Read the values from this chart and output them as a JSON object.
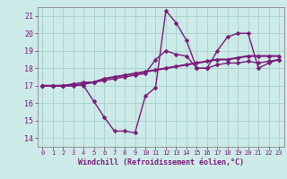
{
  "background_color": "#cceae7",
  "grid_color": "#aad4d0",
  "line_color": "#7B1A7B",
  "xlabel": "Windchill (Refroidissement éolien,°C)",
  "xlim": [
    -0.5,
    23.5
  ],
  "ylim": [
    13.5,
    21.5
  ],
  "yticks": [
    14,
    15,
    16,
    17,
    18,
    19,
    20,
    21
  ],
  "xticks": [
    0,
    1,
    2,
    3,
    4,
    5,
    6,
    7,
    8,
    9,
    10,
    11,
    12,
    13,
    14,
    15,
    16,
    17,
    18,
    19,
    20,
    21,
    22,
    23
  ],
  "line1_x": [
    0,
    1,
    2,
    3,
    4,
    5,
    6,
    7,
    8,
    9,
    10,
    11,
    12,
    13,
    14,
    15,
    16,
    17,
    18,
    19,
    20,
    21,
    22,
    23
  ],
  "line1_y": [
    17.0,
    17.0,
    17.0,
    17.1,
    17.0,
    16.1,
    15.2,
    14.4,
    14.4,
    14.3,
    16.4,
    16.9,
    21.3,
    20.6,
    19.6,
    18.0,
    18.0,
    19.0,
    19.8,
    20.0,
    20.0,
    18.0,
    18.3,
    18.5
  ],
  "line2_x": [
    0,
    1,
    2,
    3,
    4,
    5,
    6,
    7,
    8,
    9,
    10,
    11,
    12,
    13,
    14,
    15,
    16,
    17,
    18,
    19,
    20,
    21,
    22,
    23
  ],
  "line2_y": [
    17.0,
    17.0,
    17.0,
    17.0,
    17.1,
    17.2,
    17.4,
    17.5,
    17.6,
    17.7,
    17.8,
    17.9,
    18.0,
    18.1,
    18.2,
    18.3,
    18.4,
    18.5,
    18.5,
    18.6,
    18.7,
    18.7,
    18.7,
    18.7
  ],
  "line3_x": [
    0,
    1,
    2,
    3,
    4,
    5,
    6,
    7,
    8,
    9,
    10,
    11,
    12,
    13,
    14,
    15,
    16,
    17,
    18,
    19,
    20,
    21,
    22,
    23
  ],
  "line3_y": [
    17.0,
    17.0,
    17.0,
    17.1,
    17.2,
    17.2,
    17.3,
    17.4,
    17.5,
    17.6,
    17.7,
    18.5,
    19.0,
    18.8,
    18.7,
    18.0,
    18.0,
    18.2,
    18.3,
    18.3,
    18.4,
    18.3,
    18.4,
    18.5
  ],
  "marker_size": 2.5,
  "lw1": 1.0,
  "lw2": 1.5,
  "lw3": 1.0
}
